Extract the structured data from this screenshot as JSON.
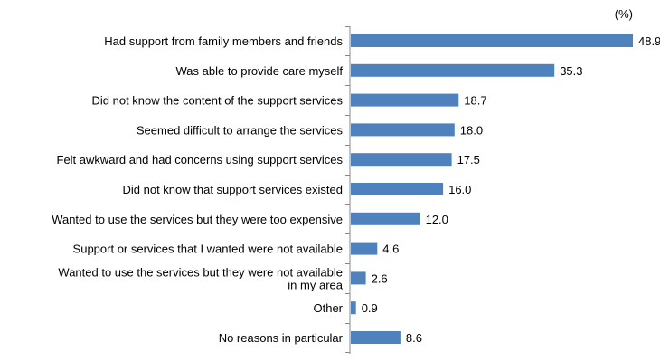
{
  "chart_data": {
    "type": "bar",
    "orientation": "horizontal",
    "unit": "(%)",
    "categories": [
      [
        "Had support from family members and friends"
      ],
      [
        "Was able to provide care myself"
      ],
      [
        "Did not know the content of the support services"
      ],
      [
        "Seemed difficult to arrange the services"
      ],
      [
        "Felt awkward and had concerns using support services"
      ],
      [
        "Did not know that support services existed"
      ],
      [
        "Wanted to use the services but they were too expensive"
      ],
      [
        "Support or services that I wanted were not available"
      ],
      [
        "Wanted to use the services but they were not available",
        "in my area"
      ],
      [
        "Other"
      ],
      [
        "No reasons in particular"
      ]
    ],
    "values": [
      48.9,
      35.3,
      18.7,
      18.0,
      17.5,
      16.0,
      12.0,
      4.6,
      2.6,
      0.9,
      8.6
    ],
    "value_labels": [
      "48.9",
      "35.3",
      "18.7",
      "18.0",
      "17.5",
      "16.0",
      "12.0",
      "4.6",
      "2.6",
      "0.9",
      "8.6"
    ],
    "xlim": [
      0,
      55
    ],
    "bar_color": "#4f81bd",
    "axis_color": "#888888",
    "grid": false,
    "legend": "none"
  }
}
